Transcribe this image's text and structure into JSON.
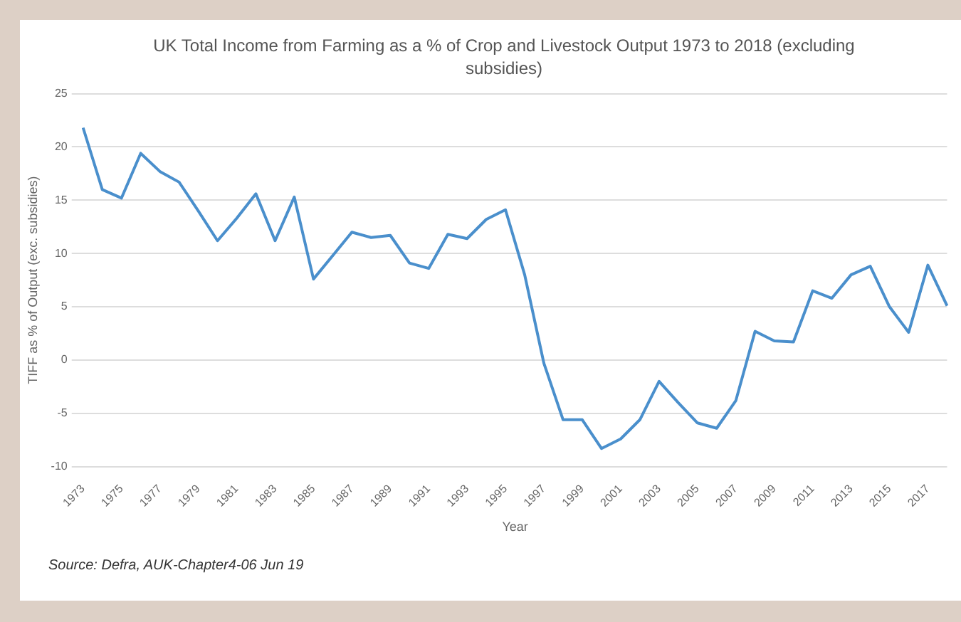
{
  "chart_data": {
    "type": "line",
    "title": "UK Total Income from Farming as a % of Crop and Livestock Output 1973 to 2018 (excluding subsidies)",
    "xlabel": "Year",
    "ylabel": "TIFF as % of Output (exc. subsidies)",
    "annotations": [
      "Source: Defra, AUK-Chapter4-06 Jun 19"
    ],
    "categories": [
      "1973",
      null,
      "1975",
      null,
      "1977",
      null,
      "1979",
      null,
      "1981",
      null,
      "1983",
      null,
      "1985",
      null,
      "1987",
      null,
      "1989",
      null,
      "1991",
      null,
      "1993",
      null,
      "1995",
      null,
      "1997",
      null,
      "1999",
      null,
      "2001",
      null,
      "2003",
      null,
      "2005",
      null,
      "2007",
      null,
      "2009",
      null,
      "2011",
      null,
      "2013",
      null,
      "2015",
      null,
      "2017",
      null
    ],
    "series": [
      {
        "color": "#4a8fcc",
        "values": [
          21.8,
          16,
          15.2,
          19.4,
          17.7,
          16.7,
          14,
          11.2,
          13.3,
          15.6,
          11.2,
          15.3,
          7.6,
          9.8,
          12,
          11.5,
          11.7,
          9.1,
          8.6,
          11.8,
          11.4,
          13.2,
          14.1,
          8,
          -0.3,
          -5.6,
          -5.6,
          -8.3,
          -7.4,
          -5.6,
          -2,
          -4,
          -5.9,
          -6.4,
          -3.8,
          2.7,
          1.8,
          1.7,
          6.5,
          5.8,
          8,
          8.8,
          5,
          2.6,
          8.9,
          5.1
        ]
      }
    ],
    "ylim": [
      -10,
      25
    ],
    "yticks": [
      -10,
      -5,
      0,
      5,
      10,
      15,
      20,
      25
    ],
    "grid": "y",
    "legend": false,
    "marker": "none",
    "line_style": "solid"
  }
}
